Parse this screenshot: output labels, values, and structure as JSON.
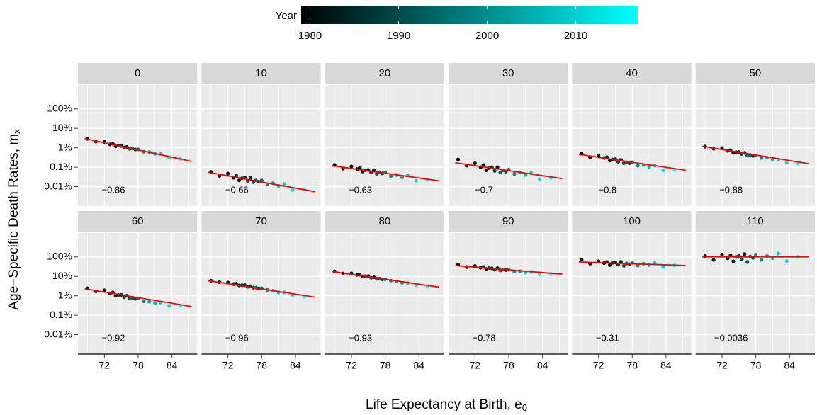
{
  "chart_data": {
    "type": "scatter",
    "x_label": "Life Expectancy at Birth, e",
    "x_label_sub": "0",
    "y_label": "Age−Specific Death Rates, m",
    "y_label_sub": "x",
    "color_label": "Year",
    "color_low": "#000000",
    "color_high": "#00FFFF",
    "color_lim": [
      1979,
      2017
    ],
    "color_ticks": [
      1980,
      1990,
      2000,
      2010
    ],
    "log_y": true,
    "grid": true,
    "xlim": [
      67.3,
      88.5
    ],
    "xticks": [
      72,
      78,
      84
    ],
    "xminor": [
      69,
      75,
      81,
      87
    ],
    "ylim": [
      0.001,
      1700
    ],
    "yticks": [
      {
        "value": 100,
        "label": "100%"
      },
      {
        "value": 10,
        "label": "10%"
      },
      {
        "value": 1,
        "label": "1%"
      },
      {
        "value": 0.1,
        "label": "0.1%"
      },
      {
        "value": 0.01,
        "label": "0.01%"
      }
    ],
    "x": [
      69,
      70.5,
      72,
      73,
      73.5,
      74,
      74.5,
      75,
      75.5,
      76,
      76.5,
      77,
      77.5,
      78,
      79,
      80,
      81,
      82,
      83.5,
      85.5
    ],
    "year": [
      1980,
      1981,
      1983,
      1980,
      1985,
      1982,
      1988,
      1986,
      1990,
      1984,
      1993,
      1995,
      1989,
      1998,
      2000,
      2003,
      2006,
      2009,
      2012,
      2016
    ],
    "fit_color": "#FF0000",
    "fit_x": [
      68.5,
      87.5
    ],
    "panels": [
      {
        "title": "0",
        "r": "−0.86",
        "fit": [
          3,
          0.2
        ],
        "values": [
          2.9,
          2.1,
          2.0,
          1.5,
          1.6,
          1.2,
          1.3,
          1.25,
          1.05,
          1.1,
          0.88,
          0.91,
          0.82,
          0.83,
          0.63,
          0.6,
          0.49,
          0.49,
          0.32,
          0.27
        ]
      },
      {
        "title": "10",
        "r": "−0.66",
        "fit": [
          0.055,
          0.0055
        ],
        "values": [
          0.057,
          0.036,
          0.047,
          0.029,
          0.036,
          0.021,
          0.027,
          0.029,
          0.02,
          0.028,
          0.017,
          0.021,
          0.018,
          0.021,
          0.013,
          0.015,
          0.011,
          0.014,
          0.0068,
          0.007
        ]
      },
      {
        "title": "20",
        "r": "−0.63",
        "fit": [
          0.12,
          0.02
        ],
        "values": [
          0.13,
          0.085,
          0.11,
          0.08,
          0.095,
          0.06,
          0.07,
          0.072,
          0.055,
          0.07,
          0.045,
          0.055,
          0.048,
          0.055,
          0.035,
          0.04,
          0.03,
          0.038,
          0.02,
          0.022
        ]
      },
      {
        "title": "30",
        "r": "−0.7",
        "fit": [
          0.17,
          0.026
        ],
        "values": [
          0.25,
          0.12,
          0.16,
          0.1,
          0.13,
          0.07,
          0.09,
          0.1,
          0.065,
          0.1,
          0.055,
          0.07,
          0.06,
          0.075,
          0.045,
          0.055,
          0.04,
          0.05,
          0.025,
          0.028
        ]
      },
      {
        "title": "40",
        "r": "−0.8",
        "fit": [
          0.46,
          0.07
        ],
        "values": [
          0.5,
          0.33,
          0.4,
          0.3,
          0.33,
          0.22,
          0.25,
          0.26,
          0.19,
          0.24,
          0.16,
          0.18,
          0.16,
          0.18,
          0.12,
          0.13,
          0.1,
          0.12,
          0.07,
          0.071
        ]
      },
      {
        "title": "50",
        "r": "−0.88",
        "fit": [
          1.2,
          0.15
        ],
        "values": [
          1.15,
          0.9,
          0.95,
          0.7,
          0.75,
          0.55,
          0.6,
          0.61,
          0.48,
          0.55,
          0.4,
          0.43,
          0.38,
          0.41,
          0.3,
          0.31,
          0.24,
          0.25,
          0.17,
          0.16
        ]
      },
      {
        "title": "60",
        "r": "−0.92",
        "fit": [
          2.3,
          0.28
        ],
        "values": [
          2.4,
          1.7,
          1.9,
          1.3,
          1.5,
          1.0,
          1.1,
          1.12,
          0.85,
          1.01,
          0.72,
          0.78,
          0.7,
          0.73,
          0.52,
          0.5,
          0.42,
          0.45,
          0.3,
          0.31
        ]
      },
      {
        "title": "70",
        "r": "−0.96",
        "fit": [
          6,
          0.85
        ],
        "values": [
          6,
          5,
          4.8,
          4,
          4.2,
          3.4,
          3.5,
          3.52,
          2.9,
          3.1,
          2.6,
          2.62,
          2.4,
          2.42,
          2,
          1.8,
          1.5,
          1.52,
          1.1,
          0.9
        ]
      },
      {
        "title": "80",
        "r": "−0.93",
        "fit": [
          18,
          2.8
        ],
        "values": [
          18,
          14,
          14.2,
          12,
          12.2,
          10,
          10.2,
          10.4,
          8.5,
          9,
          7.5,
          7.6,
          7,
          7.1,
          6,
          5.5,
          4.6,
          4.5,
          3.6,
          3
        ]
      },
      {
        "title": "90",
        "r": "−0.78",
        "fit": [
          36,
          13
        ],
        "values": [
          40,
          30,
          34,
          28,
          30.5,
          24,
          27,
          26,
          22,
          26.5,
          20,
          22.5,
          21,
          22,
          18,
          18.5,
          16,
          17,
          13,
          13.5
        ]
      },
      {
        "title": "100",
        "r": "−0.31",
        "fit": [
          55,
          36
        ],
        "values": [
          70,
          45,
          60,
          48,
          55,
          38,
          50,
          52,
          40,
          56,
          35,
          46,
          42,
          50.5,
          36,
          45,
          38,
          48,
          30,
          37
        ]
      },
      {
        "title": "110",
        "r": "−0.0036",
        "fit": [
          100,
          100
        ],
        "values": [
          110,
          70,
          130,
          85,
          120,
          60,
          100,
          115,
          75,
          140,
          55,
          105,
          90,
          131,
          71,
          111,
          86,
          150,
          61,
          101
        ]
      }
    ]
  }
}
